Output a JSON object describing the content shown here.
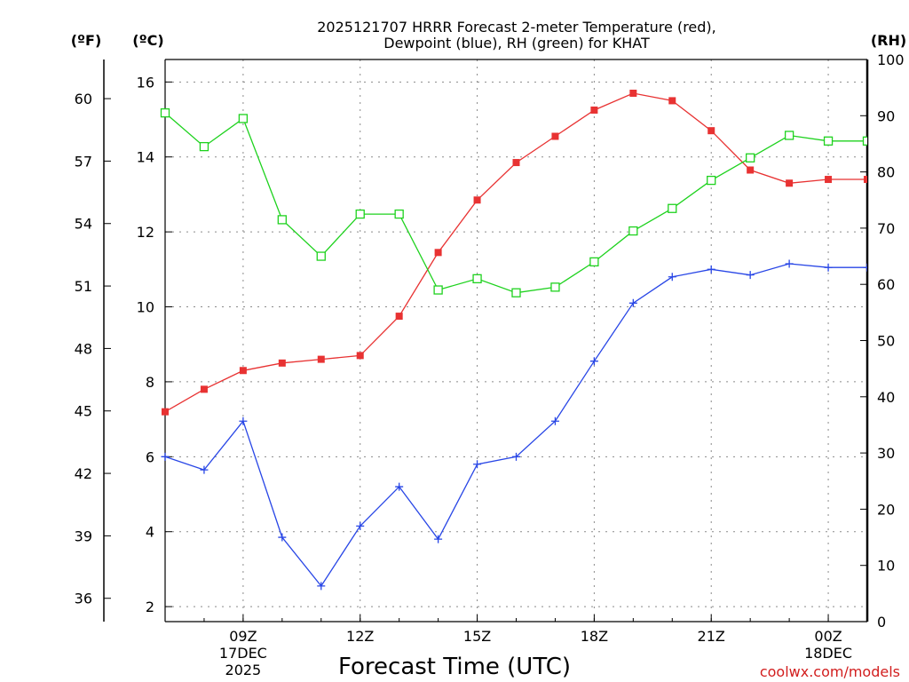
{
  "chart_data": {
    "type": "line",
    "title_line1": "2025121707 HRRR Forecast 2-meter Temperature (red),",
    "title_line2": "Dewpoint (blue), RH (green) for KHAT",
    "xlabel": "Forecast Time (UTC)",
    "credit": "coolwx.com/models",
    "unit_f": "(ºF)",
    "unit_c": "(ºC)",
    "unit_rh": "(RH)",
    "x_hours": [
      7,
      8,
      9,
      10,
      11,
      12,
      13,
      14,
      15,
      16,
      17,
      18,
      19,
      20,
      21,
      22,
      23,
      24,
      25
    ],
    "xlim": [
      7,
      25
    ],
    "x_ticks": [
      {
        "hour": 9,
        "label": "09Z",
        "sub1": "17DEC",
        "sub2": "2025"
      },
      {
        "hour": 12,
        "label": "12Z",
        "sub1": "",
        "sub2": ""
      },
      {
        "hour": 15,
        "label": "15Z",
        "sub1": "",
        "sub2": ""
      },
      {
        "hour": 18,
        "label": "18Z",
        "sub1": "",
        "sub2": ""
      },
      {
        "hour": 21,
        "label": "21Z",
        "sub1": "",
        "sub2": ""
      },
      {
        "hour": 24,
        "label": "00Z",
        "sub1": "18DEC",
        "sub2": ""
      }
    ],
    "ylim_c": [
      1.6,
      16.6
    ],
    "y_ticks_c": [
      "2",
      "4",
      "6",
      "8",
      "10",
      "12",
      "14",
      "16"
    ],
    "y_ticks_f": [
      "36",
      "39",
      "42",
      "45",
      "48",
      "51",
      "54",
      "57",
      "60"
    ],
    "ylim_rh": [
      0,
      100
    ],
    "y_ticks_rh": [
      "0",
      "10",
      "20",
      "30",
      "40",
      "50",
      "60",
      "70",
      "80",
      "90",
      "100"
    ],
    "series": [
      {
        "name": "Temperature",
        "unit": "C",
        "color": "#e83232",
        "values": [
          7.2,
          7.8,
          8.3,
          8.5,
          8.6,
          8.7,
          9.75,
          11.45,
          12.85,
          13.85,
          14.55,
          15.25,
          15.7,
          15.5,
          14.7,
          13.65,
          13.3,
          13.4,
          13.4
        ]
      },
      {
        "name": "Dewpoint",
        "unit": "C",
        "color": "#2846e6",
        "values": [
          6.0,
          5.65,
          6.95,
          3.85,
          2.55,
          4.15,
          5.2,
          3.8,
          5.8,
          6.0,
          6.95,
          8.55,
          10.1,
          10.8,
          11.0,
          10.85,
          11.15,
          11.05,
          11.05
        ]
      },
      {
        "name": "RH",
        "unit": "%",
        "color": "#1ed21e",
        "values": [
          90.5,
          84.5,
          89.5,
          71.5,
          65.0,
          72.5,
          72.5,
          59.0,
          61.0,
          58.5,
          59.5,
          64.0,
          69.5,
          73.5,
          78.5,
          82.5,
          86.5,
          85.5,
          85.5
        ]
      }
    ]
  }
}
